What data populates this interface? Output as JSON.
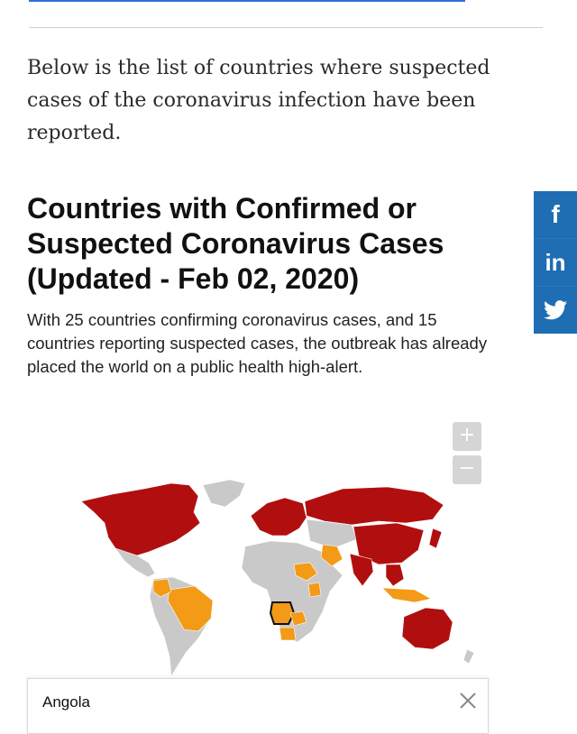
{
  "intro": {
    "text": "Below is the list of countries where suspected cases of the coronavirus infection have been reported."
  },
  "article": {
    "heading": "Countries with Confirmed or Suspected Coronavirus Cases (Updated - Feb 02, 2020)",
    "subtext": "With 25 countries confirming coronavirus cases, and 15 countries reporting suspected cases, the outbreak has already placed the world on a public health high-alert."
  },
  "share": {
    "facebook_label": "f",
    "linkedin_label": "in"
  },
  "map": {
    "zoom_in_label": "+",
    "zoom_out_label": "−",
    "colors": {
      "confirmed": "#b10f0f",
      "suspected": "#f39a17",
      "none": "#c9c9c9",
      "share_blue": "#1f6db2"
    },
    "tooltip": {
      "country": "Angola"
    }
  }
}
